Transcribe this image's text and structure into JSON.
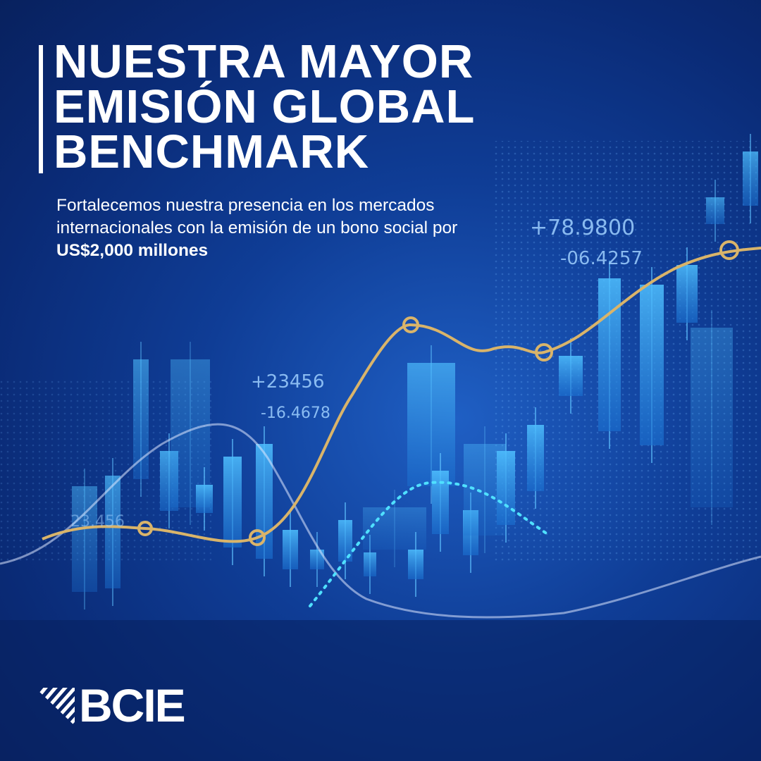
{
  "headline": {
    "lines": [
      "NUESTRA MAYOR",
      "EMISIÓN GLOBAL",
      "BENCHMARK"
    ]
  },
  "subtitle": {
    "text": "Fortalecemos nuestra presencia en los mercados internacionales con la emisión de un bono social por ",
    "emphasis": "US$2,000 millones"
  },
  "background_figures": [
    "+78.9800",
    "-06.4257",
    "+23456",
    "-16.4678",
    "23.456"
  ],
  "logo": {
    "text": "BCIE",
    "icon": "bcie-striped-triangle-logo"
  },
  "colors": {
    "background": "#0a2a75",
    "accent_gold": "#d9b46a",
    "candle": "#3fa8f0",
    "text": "#ffffff"
  }
}
